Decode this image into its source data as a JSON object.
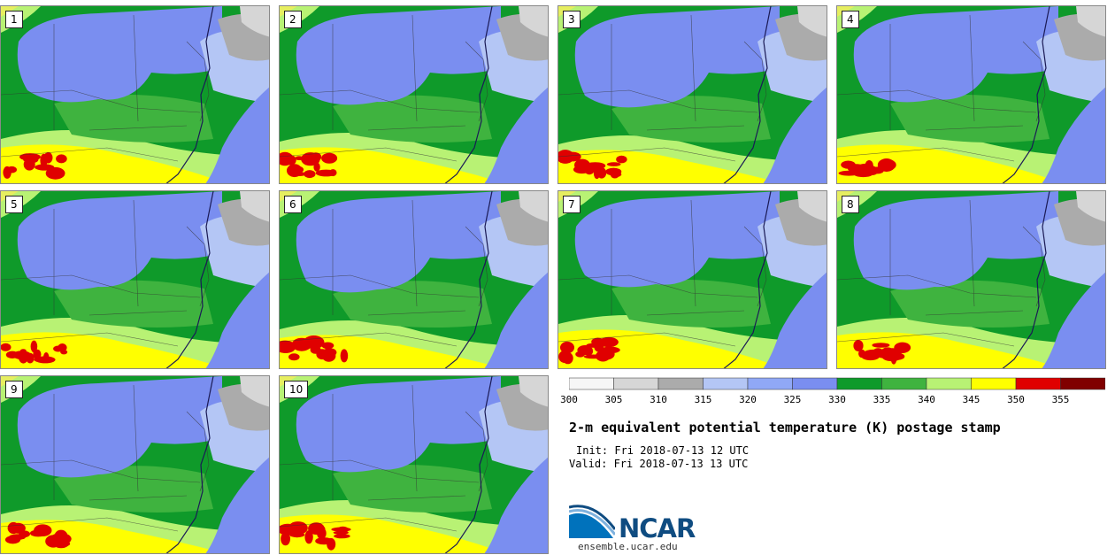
{
  "panels": [
    {
      "label": "1"
    },
    {
      "label": "2"
    },
    {
      "label": "3"
    },
    {
      "label": "4"
    },
    {
      "label": "5"
    },
    {
      "label": "6"
    },
    {
      "label": "7"
    },
    {
      "label": "8"
    },
    {
      "label": "9"
    },
    {
      "label": "10"
    }
  ],
  "colorbar": {
    "ticks": [
      "300",
      "305",
      "310",
      "315",
      "320",
      "325",
      "330",
      "335",
      "340",
      "345",
      "350",
      "355"
    ],
    "colors": [
      "#f6f6f6",
      "#d6d6d6",
      "#ababab",
      "#b4c6f5",
      "#90a8f6",
      "#7a8ef0",
      "#0f9a2a",
      "#3fb33f",
      "#b8f274",
      "#ffff00",
      "#e00000",
      "#800000"
    ]
  },
  "map_colors": {
    "ocean": "#7a8ef0",
    "cool_blue": "#7a8ef0",
    "light_blue": "#b4c6f5",
    "gray": "#ababab",
    "light_gray": "#d6d6d6",
    "dark_green": "#0f9a2a",
    "green": "#3fb33f",
    "light_green": "#b8f274",
    "yellow": "#ffff00",
    "red": "#e00000"
  },
  "title": "2-m equivalent potential temperature (K) postage stamp",
  "init_line": "Init: Fri 2018-07-13 12 UTC",
  "valid_line": "Valid: Fri 2018-07-13 13 UTC",
  "logo_text": "NCAR",
  "site": "ensemble.ucar.edu"
}
